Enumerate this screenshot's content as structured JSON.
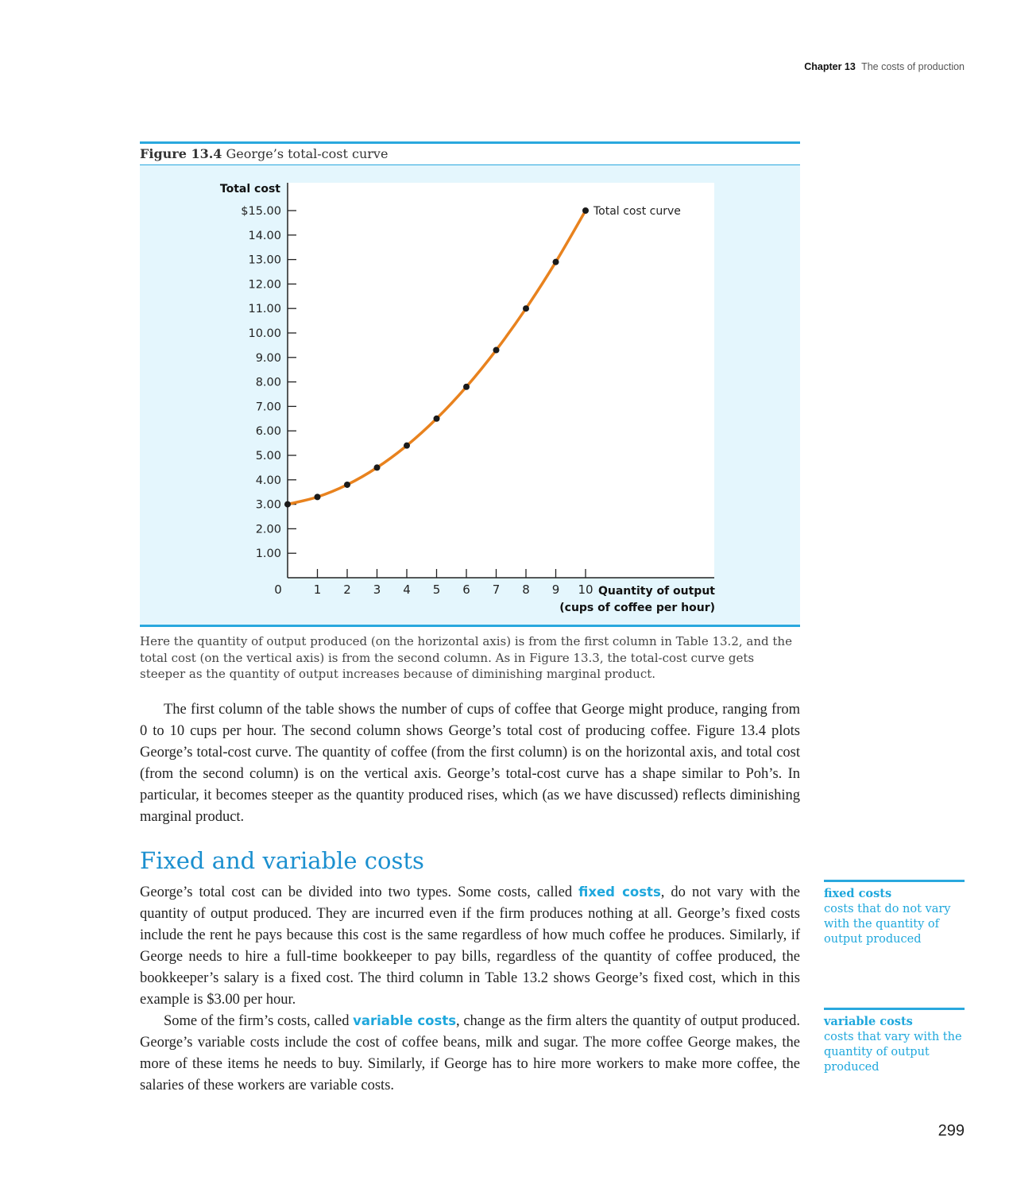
{
  "running_head": {
    "chapter": "Chapter 13",
    "title": "The costs of production"
  },
  "figure": {
    "label": "Figure 13.4",
    "title": "George’s total-cost curve",
    "caption": "Here the quantity of output produced (on the horizontal axis) is from the first column in Table 13.2, and the total cost (on the vertical axis) is from the second column. As in Figure 13.3, the total-cost curve gets steeper as the quantity of output increases because of diminishing marginal product."
  },
  "chart_data": {
    "type": "line",
    "ylabel": "Total cost",
    "xlabel_line1": "Quantity of output",
    "xlabel_line2": "(cups of coffee per hour)",
    "x_origin_label": "0",
    "x": [
      0,
      1,
      2,
      3,
      4,
      5,
      6,
      7,
      8,
      9,
      10
    ],
    "series": [
      {
        "name": "Total cost curve",
        "values": [
          3.0,
          3.3,
          3.8,
          4.5,
          5.4,
          6.5,
          7.8,
          9.3,
          11.0,
          12.9,
          15.0
        ]
      }
    ],
    "xlim": [
      0,
      10
    ],
    "ylim": [
      0,
      16
    ],
    "x_ticks": [
      "1",
      "2",
      "3",
      "4",
      "5",
      "6",
      "7",
      "8",
      "9",
      "10"
    ],
    "y_ticks": [
      {
        "value": 15,
        "label": "$15.00"
      },
      {
        "value": 14,
        "label": "14.00"
      },
      {
        "value": 13,
        "label": "13.00"
      },
      {
        "value": 12,
        "label": "12.00"
      },
      {
        "value": 11,
        "label": "11.00"
      },
      {
        "value": 10,
        "label": "10.00"
      },
      {
        "value": 9,
        "label": "9.00"
      },
      {
        "value": 8,
        "label": "8.00"
      },
      {
        "value": 7,
        "label": "7.00"
      },
      {
        "value": 6,
        "label": "6.00"
      },
      {
        "value": 5,
        "label": "5.00"
      },
      {
        "value": 4,
        "label": "4.00"
      },
      {
        "value": 3,
        "label": "3.00"
      },
      {
        "value": 2,
        "label": "2.00"
      },
      {
        "value": 1,
        "label": "1.00"
      }
    ],
    "line_color": "#e8821e",
    "point_color": "#1a1a1a",
    "grid": false
  },
  "paragraph1": "The first column of the table shows the number of cups of coffee that George might produce, ranging from 0 to 10 cups per hour. The second column shows George’s total cost of producing coffee. Figure 13.4 plots George’s total-cost curve. The quantity of coffee (from the first column) is on the horizontal axis, and total cost (from the second column) is on the vertical axis. George’s total-cost curve has a shape similar to Poh’s. In particular, it becomes steeper as the quantity produced rises, which (as we have discussed) reflects diminishing marginal product.",
  "section": {
    "heading": "Fixed and variable costs"
  },
  "paragraph2": {
    "before": "George’s total cost can be divided into two types. Some costs, called ",
    "term": "fixed costs",
    "after": ", do not vary with the quantity of output produced. They are incurred even if the firm produces nothing at all. George’s fixed costs include the rent he pays because this cost is the same regardless of how much coffee he produces. Similarly, if George needs to hire a full-time bookkeeper to pay bills, regardless of the quantity of coffee produced, the bookkeeper’s salary is a fixed cost. The third column in Table 13.2 shows George’s fixed cost, which in this example is $3.00 per hour."
  },
  "paragraph3": {
    "before": "Some of the firm’s costs, called ",
    "term": "variable costs",
    "after": ", change as the firm alters the quantity of output produced. George’s variable costs include the cost of coffee beans, milk and sugar. The more coffee George makes, the more of these items he needs to buy. Similarly, if George has to hire more workers to make more coffee, the salaries of these workers are variable costs."
  },
  "margin_notes": [
    {
      "term": "fixed costs",
      "definition": "costs that do not vary with the quantity of output produced"
    },
    {
      "term": "variable costs",
      "definition": "costs that vary with the quantity of output produced"
    }
  ],
  "page_number": "299"
}
